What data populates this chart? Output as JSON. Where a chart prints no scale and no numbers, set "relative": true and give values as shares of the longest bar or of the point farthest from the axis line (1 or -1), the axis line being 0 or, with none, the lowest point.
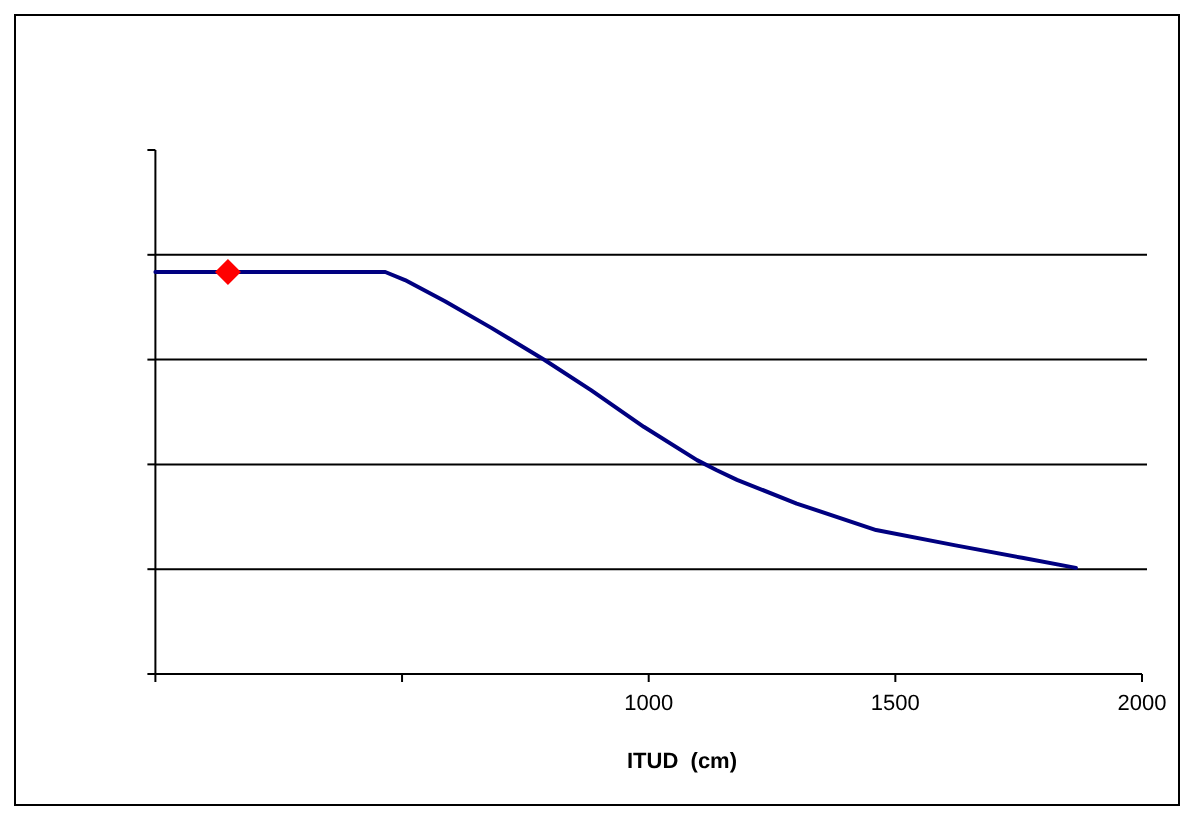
{
  "chart_data": {
    "type": "line",
    "xlabel": "ITUD  (cm)",
    "relative": true,
    "grid": "y",
    "xlim": [
      0,
      2000
    ],
    "xticks": [
      {
        "value": 0,
        "label": null
      },
      {
        "value": 500,
        "label": null
      },
      1000,
      1500,
      2000
    ],
    "series": [
      {
        "color": "#000080",
        "x": [
          0,
          200,
          466,
          506,
          587,
          681,
          789,
          883,
          990,
          1098,
          1138,
          1179,
          1300,
          1461,
          1622,
          1757,
          1866
        ],
        "values": [
          1,
          1,
          1,
          0.98,
          0.927,
          0.861,
          0.781,
          0.706,
          0.615,
          0.532,
          0.507,
          0.483,
          0.424,
          0.358,
          0.32,
          0.289,
          0.264
        ]
      },
      {
        "type": "scatter",
        "color": "#ff0000",
        "marker": "diamond",
        "x": [
          147
        ],
        "values": [
          1
        ]
      }
    ]
  }
}
